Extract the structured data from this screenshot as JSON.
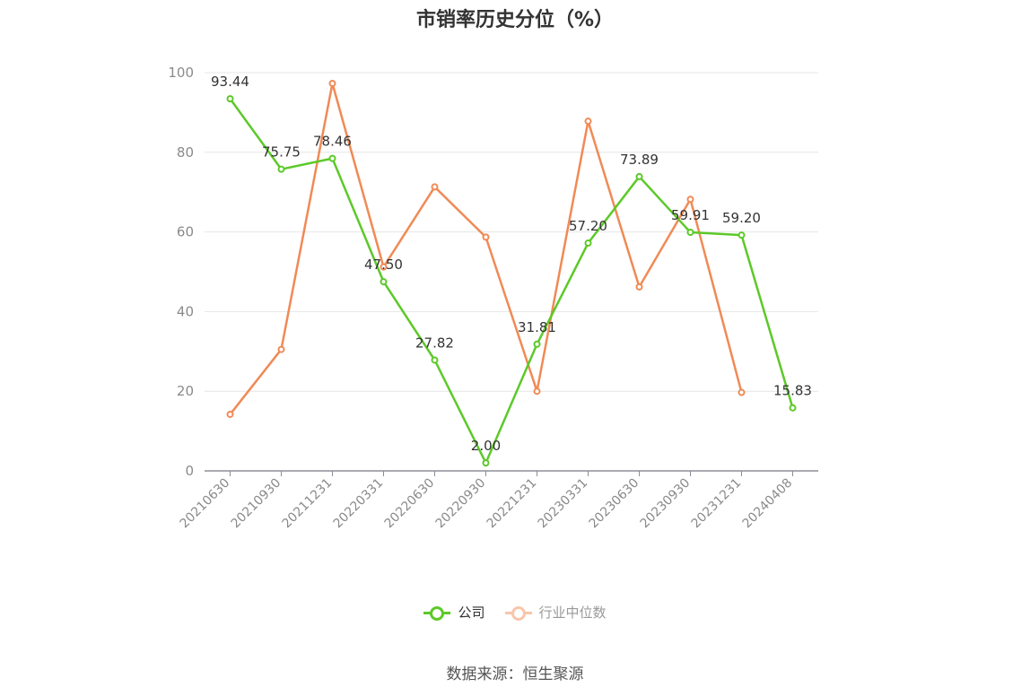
{
  "title": "市销率历史分位（%）",
  "source_note": "数据来源：恒生聚源",
  "colors": {
    "company": "#5cc928",
    "industry": "#f08a55",
    "industry_legend": "#f8c6ab",
    "grid": "#e6e6e6",
    "axis": "#8d8d99",
    "tick_text": "#8a8a8a",
    "label_text": "#333333"
  },
  "legend": [
    {
      "label": "公司",
      "series": 0
    },
    {
      "label": "行业中位数",
      "series": 1
    }
  ],
  "chart_data": {
    "type": "line",
    "title": "市销率历史分位（%）",
    "xlabel": "",
    "ylabel": "",
    "ylim": [
      0,
      100
    ],
    "yticks": [
      0,
      20,
      40,
      60,
      80,
      100
    ],
    "grid": true,
    "legend_position": "bottom-center",
    "categories": [
      "20210630",
      "20210930",
      "20211231",
      "20220331",
      "20220630",
      "20220930",
      "20221231",
      "20230331",
      "20230630",
      "20230930",
      "20231231",
      "20240408"
    ],
    "series": [
      {
        "name": "公司",
        "values": [
          93.44,
          75.75,
          78.46,
          47.5,
          27.82,
          2.0,
          31.81,
          57.2,
          73.89,
          59.91,
          59.2,
          15.83
        ],
        "data_labels": [
          "93.44",
          "75.75",
          "78.46",
          "47.50",
          "27.82",
          "2.00",
          "31.81",
          "57.20",
          "73.89",
          "59.91",
          "59.20",
          "15.83"
        ]
      },
      {
        "name": "行业中位数",
        "values": [
          14.2,
          30.5,
          97.3,
          51.2,
          71.3,
          58.7,
          20.0,
          87.8,
          46.2,
          68.2,
          19.7,
          null
        ]
      }
    ]
  }
}
